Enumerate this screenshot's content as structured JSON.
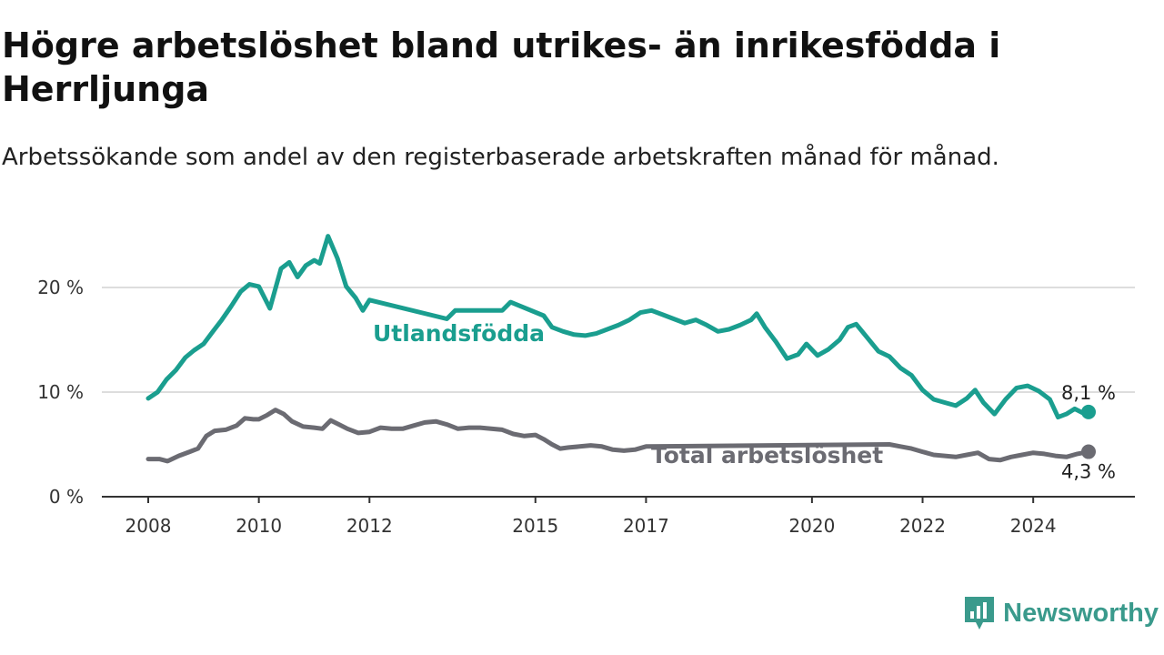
{
  "header": {
    "title": "Högre arbetslöshet bland utrikes- än inrikesfödda i Herrljunga",
    "subtitle": "Arbetssökande som andel av den registerbaserade arbetskraften månad för månad."
  },
  "brand": {
    "name": "Newsworthy",
    "icon": "newsworthy-logo-icon",
    "color": "#3a9a8c"
  },
  "colors": {
    "utlandsfodda": "#1a9e8f",
    "total": "#6b6b72",
    "grid": "#dddddd",
    "axis": "#333333"
  },
  "chart_data": {
    "type": "line",
    "title": "Högre arbetslöshet bland utrikes- än inrikesfödda i Herrljunga",
    "xlabel": "",
    "ylabel": "",
    "x_range": [
      2008.0,
      2025.0
    ],
    "ylim": [
      0,
      25
    ],
    "grid": true,
    "legend": "inline labels",
    "x_ticks": [
      {
        "value": 2008,
        "label": "2008"
      },
      {
        "value": 2010,
        "label": "2010"
      },
      {
        "value": 2012,
        "label": "2012"
      },
      {
        "value": 2015,
        "label": "2015"
      },
      {
        "value": 2017,
        "label": "2017"
      },
      {
        "value": 2020,
        "label": "2020"
      },
      {
        "value": 2022,
        "label": "2022"
      },
      {
        "value": 2024,
        "label": "2024"
      }
    ],
    "y_ticks": [
      {
        "value": 0,
        "label": "0 %"
      },
      {
        "value": 10,
        "label": "10 %"
      },
      {
        "value": 20,
        "label": "20 %"
      }
    ],
    "series": [
      {
        "name": "Utlandsfödda",
        "end_label": "8,1 %",
        "points": [
          [
            2008.0,
            9.4
          ],
          [
            2008.17,
            10.0
          ],
          [
            2008.33,
            11.2
          ],
          [
            2008.5,
            12.1
          ],
          [
            2008.67,
            13.3
          ],
          [
            2008.83,
            14.0
          ],
          [
            2009.0,
            14.6
          ],
          [
            2009.17,
            15.8
          ],
          [
            2009.33,
            16.9
          ],
          [
            2009.5,
            18.2
          ],
          [
            2009.67,
            19.6
          ],
          [
            2009.83,
            20.3
          ],
          [
            2010.0,
            20.1
          ],
          [
            2010.2,
            18.0
          ],
          [
            2010.4,
            21.8
          ],
          [
            2010.55,
            22.4
          ],
          [
            2010.7,
            21.0
          ],
          [
            2010.85,
            22.1
          ],
          [
            2011.0,
            22.6
          ],
          [
            2011.1,
            22.3
          ],
          [
            2011.25,
            24.9
          ],
          [
            2011.42,
            22.8
          ],
          [
            2011.58,
            20.1
          ],
          [
            2011.75,
            19.0
          ],
          [
            2011.88,
            17.8
          ],
          [
            2012.0,
            18.8
          ],
          [
            2013.4,
            17.0
          ],
          [
            2013.55,
            17.8
          ],
          [
            2014.4,
            17.8
          ],
          [
            2014.55,
            18.6
          ],
          [
            2015.15,
            17.3
          ],
          [
            2015.3,
            16.2
          ],
          [
            2015.5,
            15.8
          ],
          [
            2015.7,
            15.5
          ],
          [
            2015.9,
            15.4
          ],
          [
            2016.1,
            15.6
          ],
          [
            2016.3,
            16.0
          ],
          [
            2016.5,
            16.4
          ],
          [
            2016.7,
            16.9
          ],
          [
            2016.9,
            17.6
          ],
          [
            2017.1,
            17.8
          ],
          [
            2017.3,
            17.4
          ],
          [
            2017.5,
            17.0
          ],
          [
            2017.7,
            16.6
          ],
          [
            2017.9,
            16.9
          ],
          [
            2018.1,
            16.4
          ],
          [
            2018.3,
            15.8
          ],
          [
            2018.5,
            16.0
          ],
          [
            2018.7,
            16.4
          ],
          [
            2018.9,
            16.9
          ],
          [
            2019.0,
            17.5
          ],
          [
            2019.15,
            16.2
          ],
          [
            2019.35,
            14.8
          ],
          [
            2019.55,
            13.2
          ],
          [
            2019.75,
            13.6
          ],
          [
            2019.9,
            14.6
          ],
          [
            2020.1,
            13.5
          ],
          [
            2020.3,
            14.1
          ],
          [
            2020.5,
            15.0
          ],
          [
            2020.65,
            16.2
          ],
          [
            2020.8,
            16.5
          ],
          [
            2021.0,
            15.2
          ],
          [
            2021.2,
            13.9
          ],
          [
            2021.4,
            13.4
          ],
          [
            2021.6,
            12.3
          ],
          [
            2021.8,
            11.6
          ],
          [
            2022.0,
            10.2
          ],
          [
            2022.2,
            9.3
          ],
          [
            2022.4,
            9.0
          ],
          [
            2022.6,
            8.7
          ],
          [
            2022.8,
            9.4
          ],
          [
            2022.95,
            10.2
          ],
          [
            2023.1,
            9.0
          ],
          [
            2023.3,
            7.9
          ],
          [
            2023.5,
            9.3
          ],
          [
            2023.7,
            10.4
          ],
          [
            2023.9,
            10.6
          ],
          [
            2024.1,
            10.1
          ],
          [
            2024.3,
            9.3
          ],
          [
            2024.45,
            7.6
          ],
          [
            2024.6,
            7.9
          ],
          [
            2024.75,
            8.4
          ],
          [
            2024.9,
            8.0
          ],
          [
            2025.0,
            8.1
          ]
        ]
      },
      {
        "name": "Total arbetslöshet",
        "end_label": "4,3 %",
        "points": [
          [
            2008.0,
            3.6
          ],
          [
            2008.2,
            3.6
          ],
          [
            2008.35,
            3.4
          ],
          [
            2008.55,
            3.9
          ],
          [
            2008.75,
            4.3
          ],
          [
            2008.9,
            4.6
          ],
          [
            2009.05,
            5.8
          ],
          [
            2009.2,
            6.3
          ],
          [
            2009.4,
            6.4
          ],
          [
            2009.6,
            6.8
          ],
          [
            2009.75,
            7.5
          ],
          [
            2009.9,
            7.4
          ],
          [
            2010.0,
            7.4
          ],
          [
            2010.15,
            7.8
          ],
          [
            2010.3,
            8.3
          ],
          [
            2010.45,
            7.9
          ],
          [
            2010.6,
            7.2
          ],
          [
            2010.8,
            6.7
          ],
          [
            2011.0,
            6.6
          ],
          [
            2011.15,
            6.5
          ],
          [
            2011.3,
            7.3
          ],
          [
            2011.45,
            6.9
          ],
          [
            2011.6,
            6.5
          ],
          [
            2011.8,
            6.1
          ],
          [
            2012.0,
            6.2
          ],
          [
            2012.2,
            6.6
          ],
          [
            2012.4,
            6.5
          ],
          [
            2012.6,
            6.5
          ],
          [
            2012.8,
            6.8
          ],
          [
            2013.0,
            7.1
          ],
          [
            2013.2,
            7.2
          ],
          [
            2013.4,
            6.9
          ],
          [
            2013.6,
            6.5
          ],
          [
            2013.8,
            6.6
          ],
          [
            2014.0,
            6.6
          ],
          [
            2014.2,
            6.5
          ],
          [
            2014.4,
            6.4
          ],
          [
            2014.6,
            6.0
          ],
          [
            2014.8,
            5.8
          ],
          [
            2015.0,
            5.9
          ],
          [
            2015.15,
            5.5
          ],
          [
            2015.3,
            5.0
          ],
          [
            2015.45,
            4.6
          ],
          [
            2015.6,
            4.7
          ],
          [
            2015.8,
            4.8
          ],
          [
            2016.0,
            4.9
          ],
          [
            2016.2,
            4.8
          ],
          [
            2016.4,
            4.5
          ],
          [
            2016.6,
            4.4
          ],
          [
            2016.8,
            4.5
          ],
          [
            2017.0,
            4.8
          ],
          [
            2021.4,
            5.0
          ],
          [
            2021.6,
            4.8
          ],
          [
            2021.8,
            4.6
          ],
          [
            2022.0,
            4.3
          ],
          [
            2022.2,
            4.0
          ],
          [
            2022.4,
            3.9
          ],
          [
            2022.6,
            3.8
          ],
          [
            2022.8,
            4.0
          ],
          [
            2023.0,
            4.2
          ],
          [
            2023.2,
            3.6
          ],
          [
            2023.4,
            3.5
          ],
          [
            2023.6,
            3.8
          ],
          [
            2023.8,
            4.0
          ],
          [
            2024.0,
            4.2
          ],
          [
            2024.2,
            4.1
          ],
          [
            2024.4,
            3.9
          ],
          [
            2024.6,
            3.8
          ],
          [
            2024.8,
            4.1
          ],
          [
            2025.0,
            4.3
          ]
        ]
      }
    ]
  }
}
